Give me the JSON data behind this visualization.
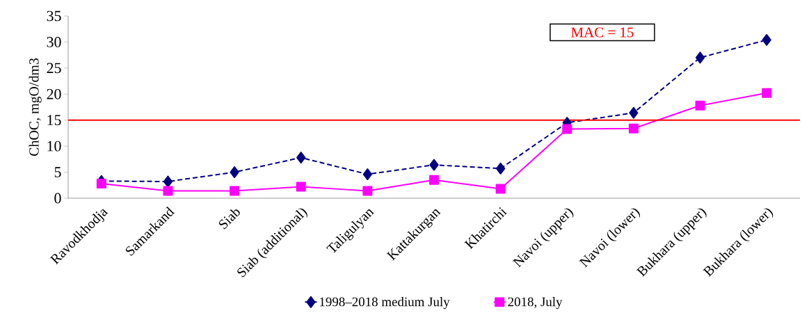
{
  "chart_data": {
    "type": "line",
    "ylabel": "ChOC, mgO/dm3",
    "categories": [
      "Ravodkhodja",
      "Samarkand",
      "Siab",
      "Siab (additional)",
      "Taligulyan",
      "Kattakurgan",
      "Khatirchi",
      "Navoi (upper)",
      "Navoi (lower)",
      "Bukhara (upper)",
      "Bukhara (lower)"
    ],
    "series": [
      {
        "name": "1998–2018 medium July",
        "color": "#000080",
        "marker": "diamond",
        "line_style": "dashed",
        "values": [
          3.3,
          3.2,
          5.0,
          7.8,
          4.6,
          6.4,
          5.7,
          14.5,
          16.4,
          27.0,
          30.4
        ]
      },
      {
        "name": "2018, July",
        "color": "#ff00ff",
        "marker": "square",
        "line_style": "solid",
        "values": [
          2.8,
          1.4,
          1.4,
          2.2,
          1.4,
          3.5,
          1.8,
          13.3,
          13.4,
          17.8,
          20.2
        ]
      }
    ],
    "ylim": [
      0,
      35
    ],
    "yticks": [
      0,
      5,
      10,
      15,
      20,
      25,
      30,
      35
    ],
    "ref_lines": [
      {
        "axis": "y",
        "value": 15,
        "label": "MAC = 15",
        "color": "#ff0000"
      }
    ],
    "grid": false,
    "legend": "bottom"
  }
}
